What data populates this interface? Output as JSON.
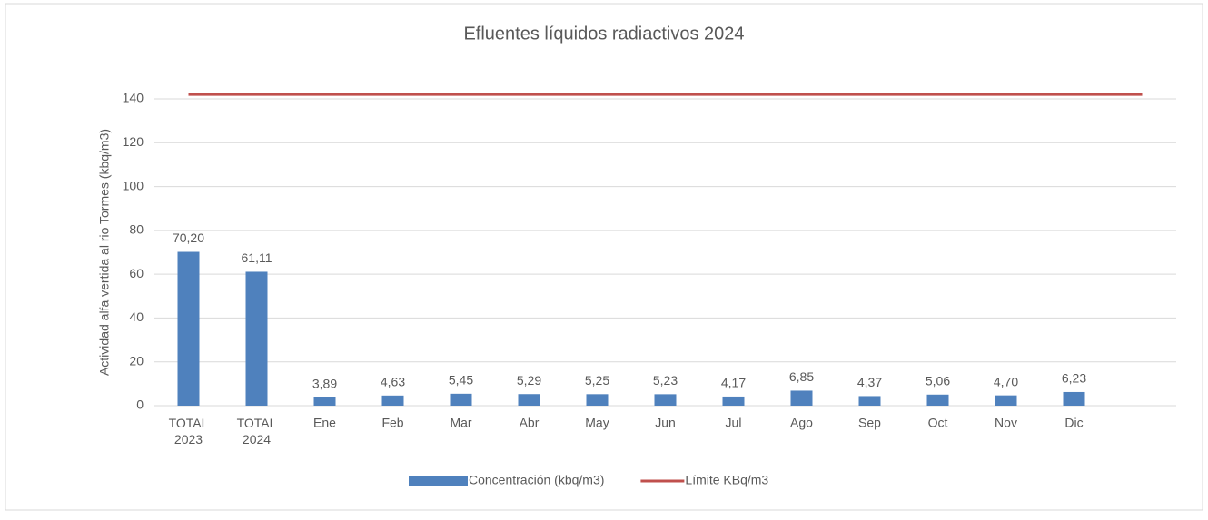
{
  "chart_data": {
    "type": "bar",
    "title": "Efluentes líquidos radiactivos 2024",
    "y_label": "Actividad alfa vertida al rio Tormes (kbq/m3)",
    "categories": [
      "TOTAL 2023",
      "TOTAL 2024",
      "Ene",
      "Feb",
      "Mar",
      "Abr",
      "May",
      "Jun",
      "Jul",
      "Ago",
      "Sep",
      "Oct",
      "Nov",
      "Dic",
      null
    ],
    "series": [
      {
        "name": "Concentración (kbq/m3)",
        "type": "bar",
        "color": "#4f81bd",
        "values": [
          70.2,
          61.11,
          3.89,
          4.63,
          5.45,
          5.29,
          5.25,
          5.23,
          4.17,
          6.85,
          4.37,
          5.06,
          4.7,
          6.23,
          null
        ],
        "value_labels": [
          "70,20",
          "61,11",
          "3,89",
          "4,63",
          "5,45",
          "5,29",
          "5,25",
          "5,23",
          "4,17",
          "6,85",
          "4,37",
          "5,06",
          "4,70",
          "6,23",
          null
        ]
      },
      {
        "name": "Límite KBq/m3",
        "type": "line",
        "color": "#c0504d",
        "values": [
          142,
          142,
          142,
          142,
          142,
          142,
          142,
          142,
          142,
          142,
          142,
          142,
          142,
          142,
          142
        ]
      }
    ],
    "ylim": [
      0,
      140
    ],
    "yticks": [
      0,
      20,
      40,
      60,
      80,
      100,
      120,
      140
    ],
    "grid": true,
    "legend": "bottom"
  }
}
